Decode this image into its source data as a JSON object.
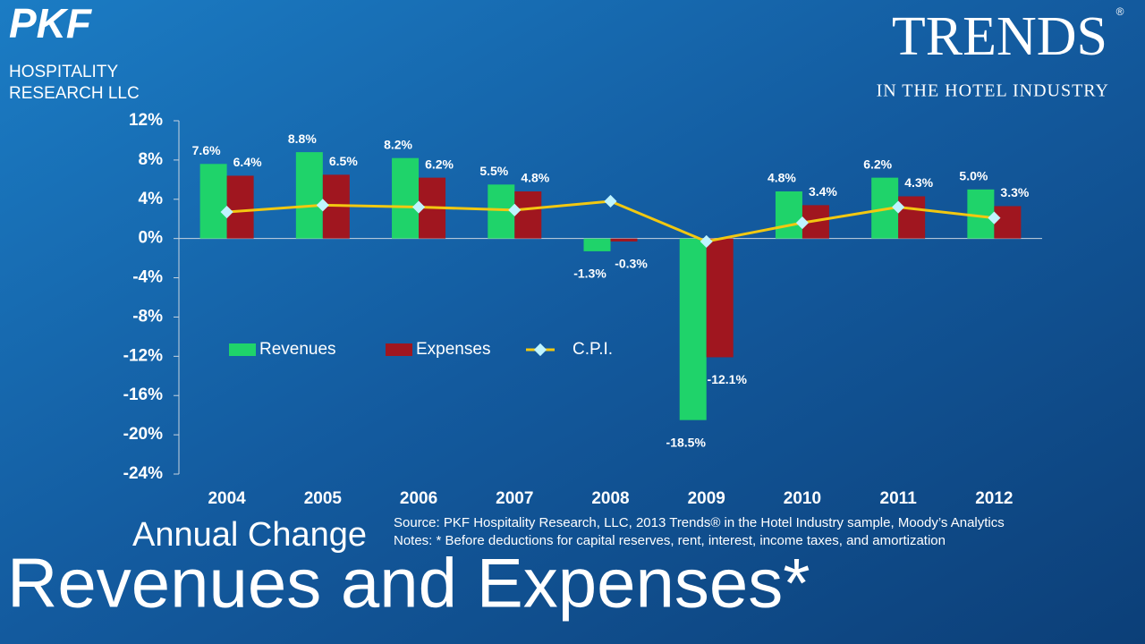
{
  "header": {
    "logo": "PKF",
    "logo_line1": "HOSPITALITY",
    "logo_line2": "RESEARCH LLC",
    "brand": "TRENDS",
    "brand_mark": "®",
    "brand_sub": "IN THE HOTEL INDUSTRY"
  },
  "chart_data": {
    "type": "bar",
    "title": "Revenues and Expenses*",
    "subtitle": "Annual Change",
    "categories": [
      "2004",
      "2005",
      "2006",
      "2007",
      "2008",
      "2009",
      "2010",
      "2011",
      "2012"
    ],
    "series": [
      {
        "name": "Revenues",
        "color": "#1fd36a",
        "values": [
          7.6,
          8.8,
          8.2,
          5.5,
          -1.3,
          -18.5,
          4.8,
          6.2,
          5.0
        ],
        "value_labels": [
          "7.6%",
          "8.8%",
          "8.2%",
          "5.5%",
          "-1.3%",
          "-18.5%",
          "4.8%",
          "6.2%",
          "5.0%"
        ]
      },
      {
        "name": "Expenses",
        "color": "#a0161f",
        "values": [
          6.4,
          6.5,
          6.2,
          4.8,
          -0.3,
          -12.1,
          3.4,
          4.3,
          3.3
        ],
        "value_labels": [
          "6.4%",
          "6.5%",
          "6.2%",
          "4.8%",
          "-0.3%",
          "-12.1%",
          "3.4%",
          "4.3%",
          "3.3%"
        ]
      },
      {
        "name": "C.P.I.",
        "type": "line",
        "color": "#f2c811",
        "marker_color": "#bff4ff",
        "values": [
          2.7,
          3.4,
          3.2,
          2.9,
          3.8,
          -0.3,
          1.6,
          3.2,
          2.1
        ]
      }
    ],
    "ylim": [
      -24,
      12
    ],
    "yticks": [
      {
        "value": -24,
        "label": "-24%"
      },
      {
        "value": -20,
        "label": "-20%"
      },
      {
        "value": -16,
        "label": "-16%"
      },
      {
        "value": -12,
        "label": "-12%"
      },
      {
        "value": -8,
        "label": "-8%"
      },
      {
        "value": -4,
        "label": "-4%"
      },
      {
        "value": 0,
        "label": "0%"
      },
      {
        "value": 4,
        "label": "4%"
      },
      {
        "value": 8,
        "label": "8%"
      },
      {
        "value": 12,
        "label": "12%"
      }
    ],
    "legend": "middle-left",
    "source": "Source: PKF Hospitality Research, LLC, 2013 Trends® in the Hotel Industry sample, Moody’s Analytics",
    "notes": "Notes: * Before deductions for capital reserves, rent, interest, income taxes, and amortization"
  }
}
